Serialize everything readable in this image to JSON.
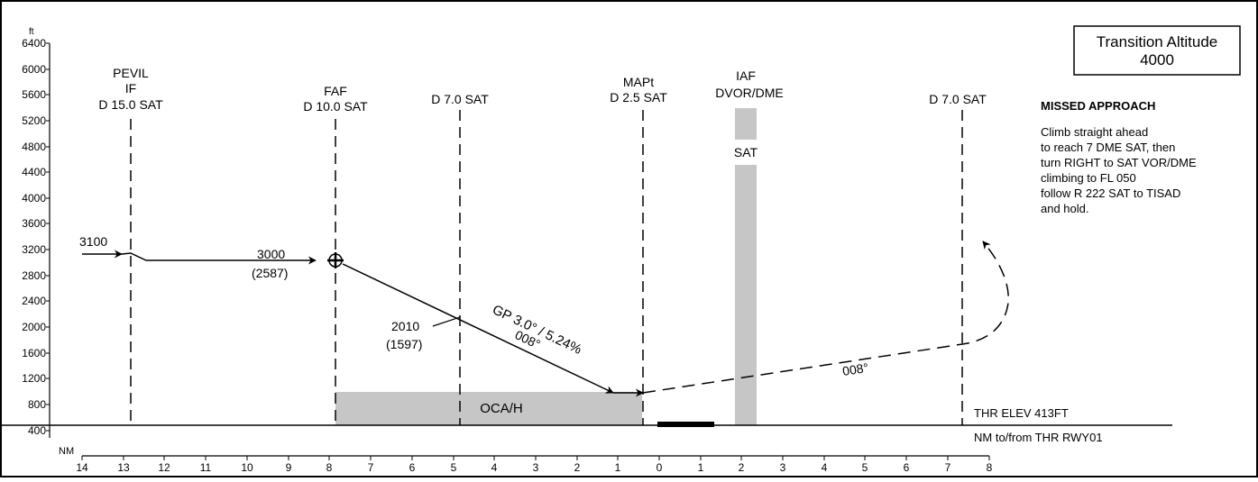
{
  "units": {
    "altitude": "ft",
    "distance": "NM"
  },
  "y_ticks": [
    "400",
    "800",
    "1200",
    "1600",
    "2000",
    "2400",
    "2800",
    "3200",
    "3600",
    "4000",
    "4400",
    "4800",
    "5200",
    "5600",
    "6000",
    "6400"
  ],
  "x_ticks": [
    "14",
    "13",
    "12",
    "11",
    "10",
    "9",
    "8",
    "7",
    "6",
    "5",
    "4",
    "3",
    "2",
    "1",
    "0",
    "1",
    "2",
    "3",
    "4",
    "5",
    "6",
    "7",
    "8"
  ],
  "transition_altitude": {
    "line1": "Transition Altitude",
    "line2": "4000"
  },
  "fixes": {
    "pevil": {
      "name": "PEVIL",
      "role": "IF",
      "dist": "D 15.0 SAT"
    },
    "faf": {
      "role": "FAF",
      "dist": "D 10.0 SAT"
    },
    "d7": {
      "dist": "D 7.0 SAT"
    },
    "mapt": {
      "role": "MAPt",
      "dist": "D 2.5 SAT"
    },
    "iaf": {
      "role": "IAF",
      "type": "DVOR/DME",
      "ident": "SAT"
    },
    "d7_missed": {
      "dist": "D 7.0 SAT"
    }
  },
  "altitudes": {
    "initial": "3100",
    "faf_alt": "3000",
    "faf_height": "(2587)",
    "check_alt": "2010",
    "check_height": "(1597)"
  },
  "glidepath": {
    "label": "GP 3.0° / 5.24%",
    "course": "008°"
  },
  "missed_course": "008°",
  "oca_label": "OCA/H",
  "thr_elev": "THR ELEV 413FT",
  "distance_label": "NM to/from THR RWY01",
  "missed_approach": {
    "title": "MISSED APPROACH",
    "lines": [
      "Climb straight ahead",
      "to reach 7 DME SAT, then",
      "turn RIGHT to SAT VOR/DME",
      "climbing to FL 050",
      "follow R 222 SAT to TISAD",
      "and hold."
    ]
  }
}
